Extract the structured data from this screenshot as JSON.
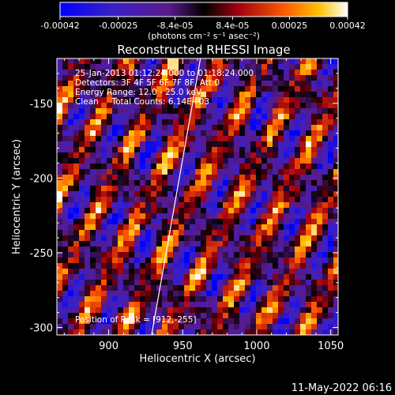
{
  "chart_data": {
    "type": "heatmap",
    "title": "Reconstructed RHESSI Image",
    "xlabel": "Heliocentric X (arcsec)",
    "ylabel": "Heliocentric Y (arcsec)",
    "xlim": [
      865,
      1055
    ],
    "ylim": [
      -305,
      -120
    ],
    "xticks": [
      900,
      950,
      1000,
      1050
    ],
    "yticks": [
      -300,
      -250,
      -200,
      -150
    ],
    "grid": false,
    "colorbar": {
      "ticks": [
        "-0.00042",
        "-0.00025",
        "-8.4e-05",
        "8.4e-05",
        "0.00025",
        "0.00042"
      ],
      "tick_values": [
        -0.00042,
        -0.00025,
        -8.4e-05,
        8.4e-05,
        0.00025,
        0.00042
      ],
      "range": [
        -0.00042,
        0.00042
      ],
      "units_label": "(photons cm⁻² s⁻¹ asec⁻²)"
    },
    "annotations": [
      "25-Jan-2013 01:12:24.000 to 01:18:24.000",
      "Detectors: 3F 4F 5F 6F 7F 8F, Att 0",
      "Energy Range: 12.0 - 25.0 keV",
      "Clean     Total Counts: 6.14E+03"
    ],
    "peak_label": "Position of Peak = [912,-255]",
    "peak": {
      "x": 912,
      "y": -255
    },
    "limb_line": {
      "x": [
        929,
        962
      ],
      "y": [
        -305,
        -120
      ]
    },
    "stripe_pattern": {
      "direction_deg": 62,
      "period_arcsec": 27
    }
  },
  "timestamp": "11-May-2022 06:16",
  "colors": {
    "background": "#000000",
    "text": "#ffffff"
  }
}
